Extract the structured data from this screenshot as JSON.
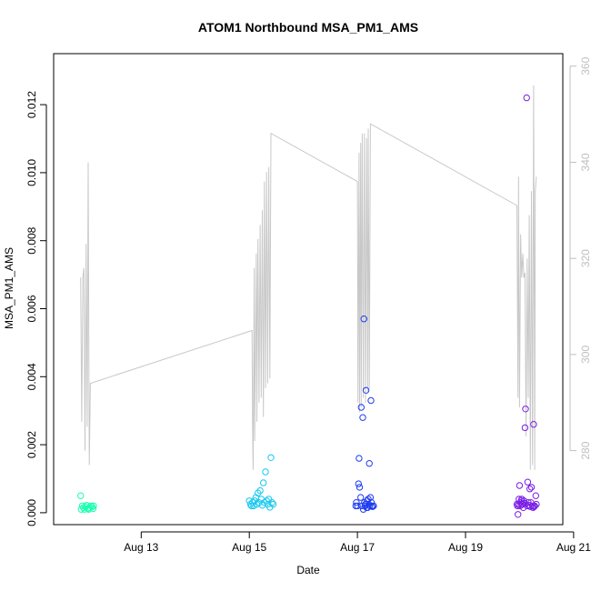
{
  "chart_data": {
    "type": "scatter",
    "title": "ATOM1 Northbound MSA_PM1_AMS",
    "xlabel": "Date",
    "ylabel": "MSA_PM1_AMS",
    "x_unit": "days after Aug 12",
    "xlim": [
      -0.62,
      8.8
    ],
    "ylim": [
      -0.00035,
      0.0135
    ],
    "x_ticks": [
      {
        "value": 1,
        "label": "Aug 13"
      },
      {
        "value": 3,
        "label": "Aug 15"
      },
      {
        "value": 5,
        "label": "Aug 17"
      },
      {
        "value": 7,
        "label": "Aug 19"
      },
      {
        "value": 9,
        "label": "Aug 21"
      }
    ],
    "y_ticks": [
      {
        "value": 0.0,
        "label": "0.000"
      },
      {
        "value": 0.002,
        "label": "0.002"
      },
      {
        "value": 0.004,
        "label": "0.004"
      },
      {
        "value": 0.006,
        "label": "0.006"
      },
      {
        "value": 0.008,
        "label": "0.008"
      },
      {
        "value": 0.01,
        "label": "0.010"
      },
      {
        "value": 0.012,
        "label": "0.012"
      }
    ],
    "y2_ticks": [
      {
        "value": 280,
        "label": "280"
      },
      {
        "value": 300,
        "label": "300"
      },
      {
        "value": 320,
        "label": "320"
      },
      {
        "value": 340,
        "label": "340"
      },
      {
        "value": 360,
        "label": "360"
      }
    ],
    "y2lim": [
      264.6,
      362.6
    ],
    "series": [
      {
        "name": "scatter-aug12",
        "color": "#19ffb0",
        "points": [
          [
            -0.12,
            0.0005
          ],
          [
            -0.11,
            0.0001
          ],
          [
            -0.09,
            0.0002
          ],
          [
            -0.07,
            0.00015
          ],
          [
            -0.05,
            0.0001
          ],
          [
            -0.03,
            0.00018
          ],
          [
            -0.01,
            0.00022
          ],
          [
            0.01,
            0.00012
          ],
          [
            0.03,
            0.0001
          ],
          [
            0.05,
            0.00015
          ],
          [
            0.07,
            0.0002
          ],
          [
            0.09,
            0.00018
          ],
          [
            0.11,
            0.00012
          ],
          [
            0.12,
            0.0002
          ]
        ]
      },
      {
        "name": "scatter-aug15",
        "color": "#18c8f0",
        "points": [
          [
            3.0,
            0.00035
          ],
          [
            3.02,
            0.00025
          ],
          [
            3.04,
            0.0002
          ],
          [
            3.06,
            0.0003
          ],
          [
            3.08,
            0.0002
          ],
          [
            3.1,
            0.00035
          ],
          [
            3.12,
            0.00045
          ],
          [
            3.14,
            0.00025
          ],
          [
            3.16,
            0.00058
          ],
          [
            3.18,
            0.0003
          ],
          [
            3.2,
            0.00065
          ],
          [
            3.22,
            0.0004
          ],
          [
            3.24,
            0.00022
          ],
          [
            3.26,
            0.00088
          ],
          [
            3.28,
            0.0003
          ],
          [
            3.3,
            0.0012
          ],
          [
            3.32,
            0.00035
          ],
          [
            3.34,
            0.00025
          ],
          [
            3.36,
            0.0004
          ],
          [
            3.38,
            0.00016
          ],
          [
            3.4,
            0.00162
          ],
          [
            3.42,
            0.0003
          ],
          [
            3.44,
            0.00025
          ]
        ]
      },
      {
        "name": "scatter-aug17",
        "color": "#1f3cf0",
        "points": [
          [
            5.0,
            0.0002
          ],
          [
            5.02,
            0.00085
          ],
          [
            5.03,
            0.0016
          ],
          [
            5.04,
            0.00075
          ],
          [
            5.06,
            0.00045
          ],
          [
            5.07,
            0.0031
          ],
          [
            5.08,
            0.0002
          ],
          [
            5.1,
            0.0028
          ],
          [
            5.11,
            0.0001
          ],
          [
            5.12,
            0.0057
          ],
          [
            5.13,
            0.0003
          ],
          [
            5.14,
            0.0002
          ],
          [
            5.15,
            0.00025
          ],
          [
            5.16,
            0.0036
          ],
          [
            5.17,
            0.00015
          ],
          [
            5.18,
            0.00035
          ],
          [
            5.19,
            0.00015
          ],
          [
            5.2,
            0.0004
          ],
          [
            5.21,
            0.00025
          ],
          [
            5.22,
            0.00145
          ],
          [
            5.23,
            0.0002
          ],
          [
            5.24,
            0.00045
          ],
          [
            5.25,
            0.0033
          ],
          [
            5.26,
            0.0003
          ],
          [
            5.27,
            0.0002
          ],
          [
            5.28,
            0.00018
          ],
          [
            5.3,
            0.0002
          ],
          [
            4.98,
            0.0003
          ],
          [
            4.97,
            0.0002
          ]
        ]
      },
      {
        "name": "scatter-aug20",
        "color": "#7a1ee6",
        "points": [
          [
            7.97,
            -5e-05
          ],
          [
            7.98,
            0.00025
          ],
          [
            7.99,
            0.0004
          ],
          [
            8.0,
            0.0008
          ],
          [
            8.01,
            0.0002
          ],
          [
            8.02,
            0.0003
          ],
          [
            8.03,
            0.00035
          ],
          [
            8.04,
            0.0004
          ],
          [
            8.05,
            0.00025
          ],
          [
            8.06,
            0.00025
          ],
          [
            8.07,
            0.00015
          ],
          [
            8.08,
            0.00035
          ],
          [
            8.09,
            0.00028
          ],
          [
            8.1,
            0.0025
          ],
          [
            8.11,
            0.00305
          ],
          [
            8.13,
            0.0122
          ],
          [
            8.14,
            0.0002
          ],
          [
            8.15,
            0.0009
          ],
          [
            8.16,
            0.0003
          ],
          [
            8.18,
            0.00022
          ],
          [
            8.19,
            0.0007
          ],
          [
            8.2,
            0.00018
          ],
          [
            8.21,
            0.0003
          ],
          [
            8.22,
            0.00075
          ],
          [
            8.24,
            0.0002
          ],
          [
            8.25,
            0.00015
          ],
          [
            8.26,
            0.0026
          ],
          [
            8.27,
            0.00018
          ],
          [
            8.28,
            0.0002
          ],
          [
            8.3,
            0.0005
          ],
          [
            8.31,
            0.00025
          ],
          [
            7.95,
            0.00025
          ],
          [
            7.96,
            0.0002
          ]
        ]
      }
    ],
    "secondary_line": {
      "name": "line-right-axis",
      "color": "#c8c8c8",
      "points": [
        [
          -0.12,
          316
        ],
        [
          -0.1,
          286
        ],
        [
          -0.08,
          316
        ],
        [
          -0.06,
          318
        ],
        [
          -0.04,
          280
        ],
        [
          -0.02,
          323
        ],
        [
          0.0,
          285
        ],
        [
          0.02,
          340
        ],
        [
          0.04,
          277
        ],
        [
          0.06,
          294
        ],
        [
          3.05,
          305
        ],
        [
          3.06,
          285
        ],
        [
          3.07,
          276
        ],
        [
          3.09,
          318
        ],
        [
          3.1,
          282
        ],
        [
          3.13,
          321
        ],
        [
          3.14,
          286
        ],
        [
          3.16,
          324
        ],
        [
          3.18,
          290
        ],
        [
          3.2,
          327
        ],
        [
          3.22,
          291
        ],
        [
          3.24,
          330
        ],
        [
          3.26,
          287
        ],
        [
          3.28,
          336
        ],
        [
          3.3,
          293
        ],
        [
          3.32,
          338
        ],
        [
          3.34,
          294
        ],
        [
          3.36,
          339
        ],
        [
          3.38,
          295
        ],
        [
          3.4,
          346
        ],
        [
          5.0,
          336
        ],
        [
          5.01,
          290
        ],
        [
          5.03,
          342
        ],
        [
          5.04,
          288
        ],
        [
          5.06,
          344
        ],
        [
          5.07,
          289
        ],
        [
          5.09,
          346
        ],
        [
          5.11,
          291
        ],
        [
          5.13,
          346
        ],
        [
          5.15,
          290
        ],
        [
          5.17,
          345
        ],
        [
          5.19,
          292
        ],
        [
          5.2,
          347
        ],
        [
          5.22,
          293
        ],
        [
          5.24,
          348
        ],
        [
          7.95,
          331
        ],
        [
          7.97,
          291
        ],
        [
          7.98,
          337
        ],
        [
          8.0,
          289
        ],
        [
          8.02,
          325
        ],
        [
          8.04,
          316
        ],
        [
          8.06,
          321
        ],
        [
          8.08,
          316
        ],
        [
          8.1,
          317
        ],
        [
          8.12,
          283
        ],
        [
          8.14,
          320
        ],
        [
          8.16,
          291
        ],
        [
          8.18,
          329
        ],
        [
          8.2,
          276
        ],
        [
          8.22,
          334
        ],
        [
          8.24,
          277
        ],
        [
          8.26,
          356
        ],
        [
          8.28,
          276
        ],
        [
          8.29,
          334
        ],
        [
          8.31,
          337
        ]
      ]
    }
  }
}
